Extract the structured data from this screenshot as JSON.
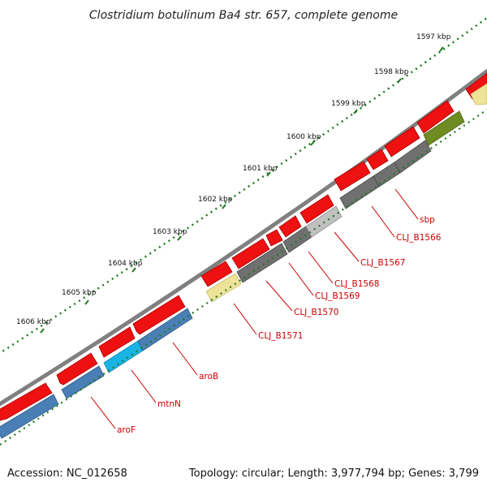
{
  "title": "Clostridium botulinum Ba4 str. 657, complete genome",
  "footer": {
    "accession": "Accession: NC_012658",
    "summary": "Topology: circular; Length: 3,977,794 bp; Genes: 3,799"
  },
  "ticks": [
    "1597 kbp",
    "1598 kbp",
    "1599 kbp",
    "1600 kbp",
    "1601 kbp",
    "1602 kbp",
    "1603 kbp",
    "1604 kbp",
    "1605 kbp",
    "1606 kbp"
  ],
  "genes": [
    "sbp",
    "CLJ_B1566",
    "CLJ_B1567",
    "CLJ_B1568",
    "CLJ_B1569",
    "CLJ_B1570",
    "CLJ_B1571",
    "aroB",
    "mtnN",
    "aroF"
  ],
  "colors": {
    "backbone": "#808080",
    "feature_red": "#ee1111",
    "feature_red_dark": "#aa0000",
    "steel_blue": "#4a7fb5",
    "cyan": "#19b4e6",
    "dark_gray": "#707070",
    "light_gray": "#c0c0c0",
    "yellow": "#efe39a",
    "olive": "#6e8c22",
    "tick_green": "#1f7a1f",
    "label_red": "#cc0000"
  }
}
